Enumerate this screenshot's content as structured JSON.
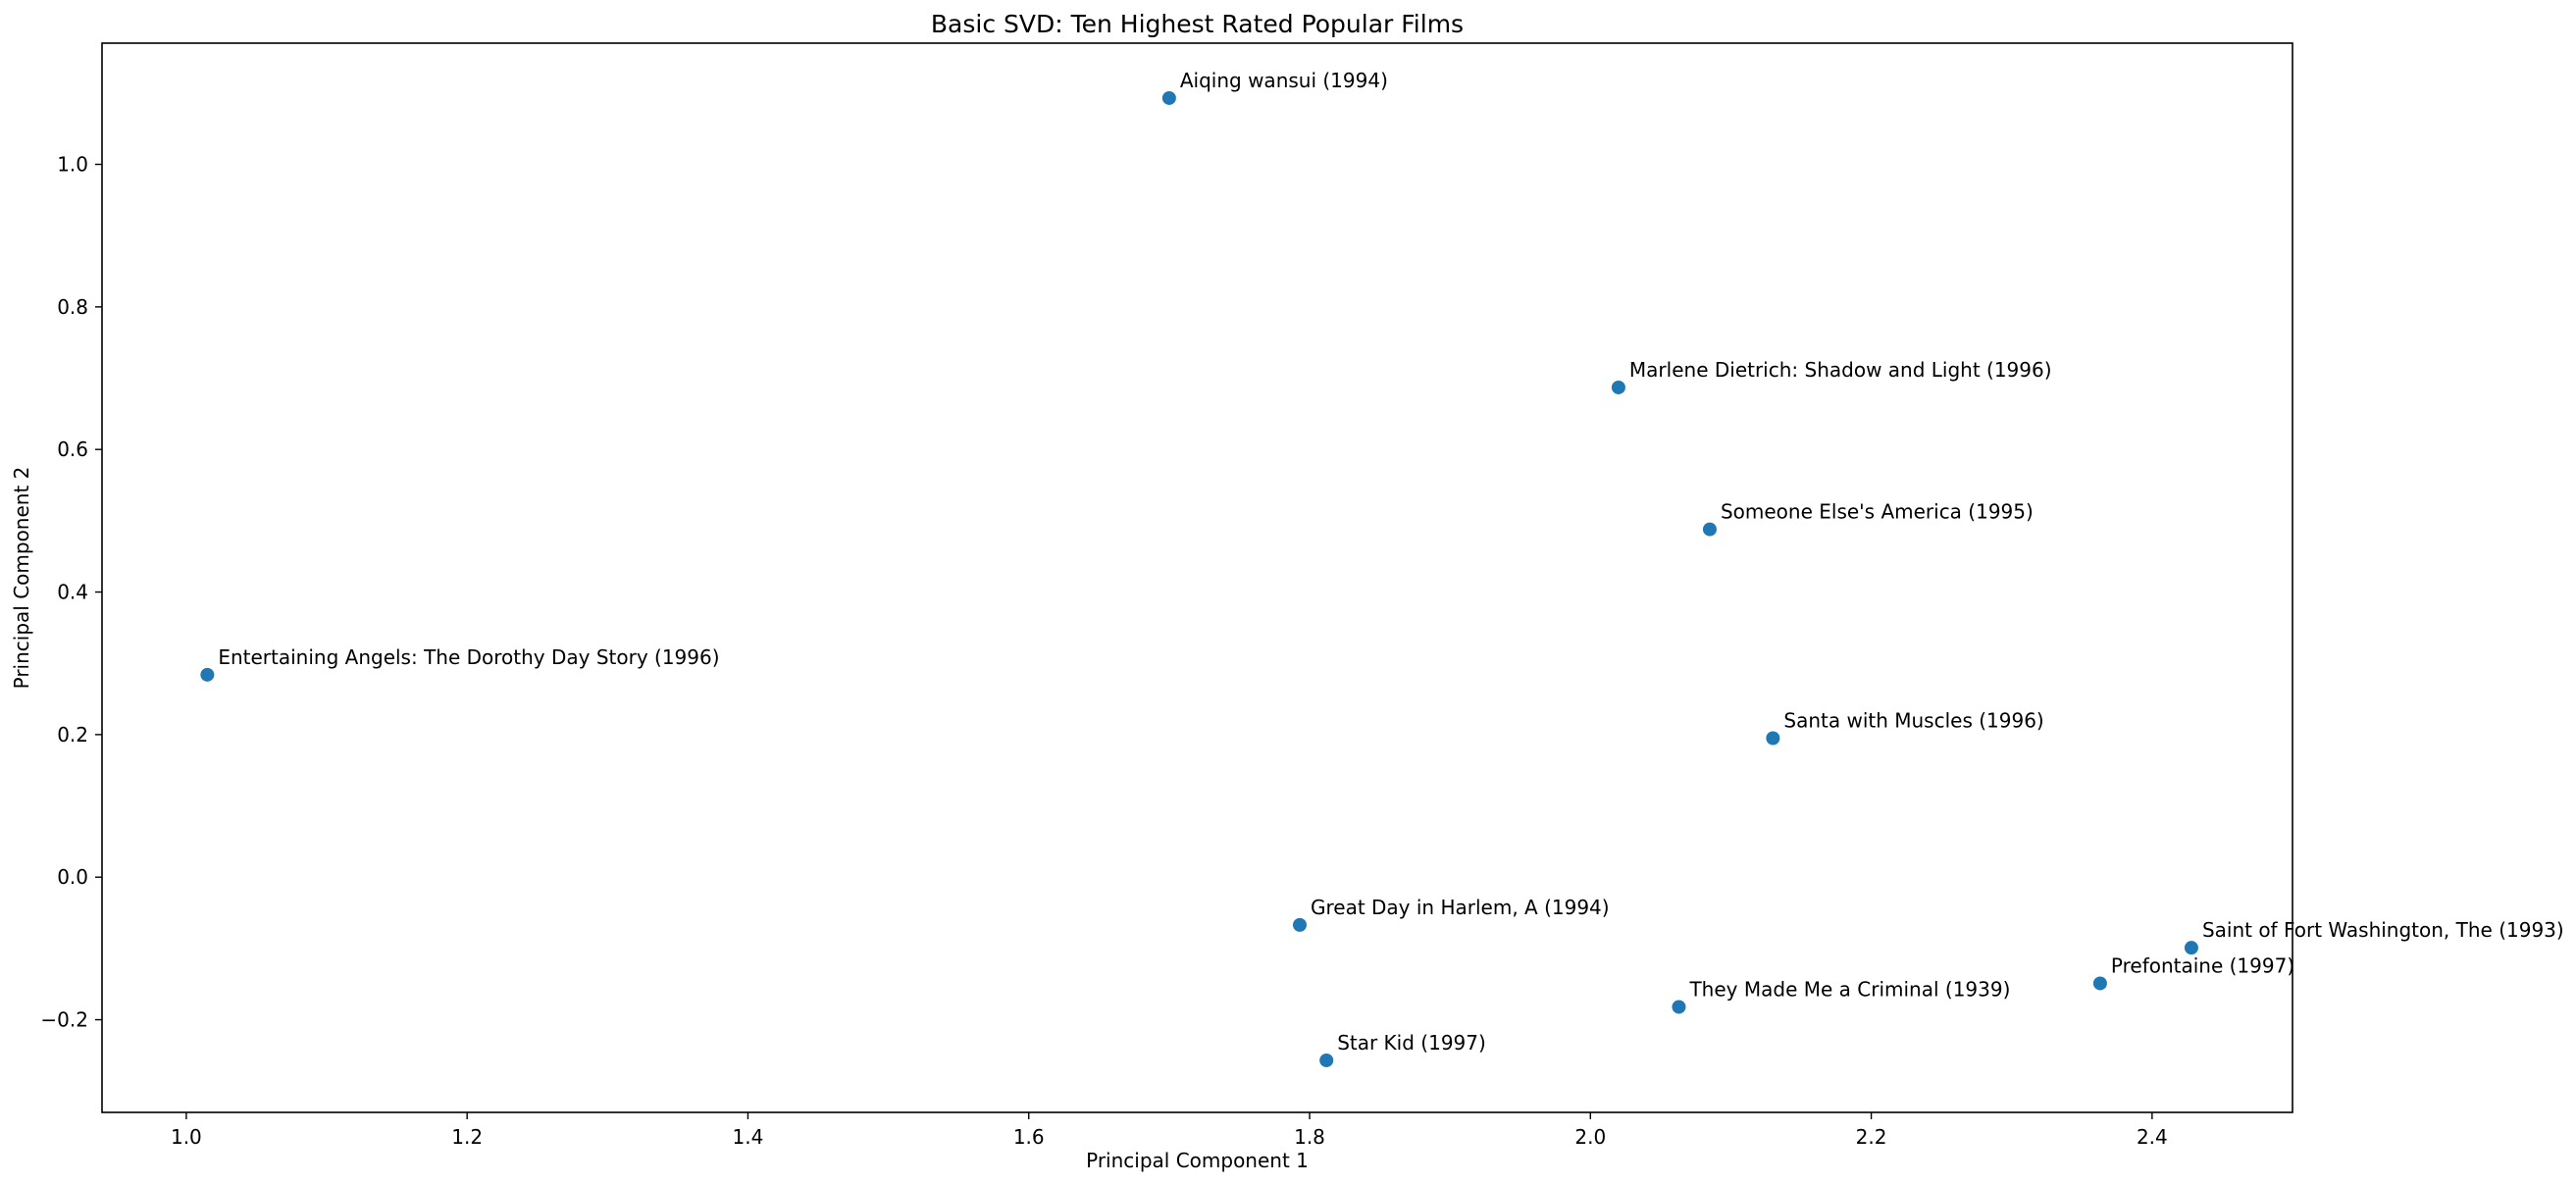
{
  "chart_data": {
    "type": "scatter",
    "title": "Basic SVD: Ten Highest Rated Popular Films",
    "xlabel": "Principal Component 1",
    "ylabel": "Principal Component 2",
    "xlim": [
      0.94,
      2.5
    ],
    "ylim": [
      -0.33,
      1.17
    ],
    "xticks": [
      1.0,
      1.2,
      1.4,
      1.6,
      1.8,
      2.0,
      2.2,
      2.4
    ],
    "xtick_labels": [
      "1.0",
      "1.2",
      "1.4",
      "1.6",
      "1.8",
      "2.0",
      "2.2",
      "2.4"
    ],
    "yticks": [
      -0.2,
      0.0,
      0.2,
      0.4,
      0.6,
      0.8,
      1.0
    ],
    "ytick_labels": [
      "−0.2",
      "0.0",
      "0.2",
      "0.4",
      "0.6",
      "0.8",
      "1.0"
    ],
    "grid": false,
    "marker_color": "#1f77b4",
    "points": [
      {
        "label": "Aiqing wansui (1994)",
        "x": 1.7,
        "y": 1.093
      },
      {
        "label": "Marlene Dietrich: Shadow and Light (1996)",
        "x": 2.02,
        "y": 0.687
      },
      {
        "label": "Someone Else's America (1995)",
        "x": 2.085,
        "y": 0.488
      },
      {
        "label": "Entertaining Angels: The Dorothy Day Story (1996)",
        "x": 1.015,
        "y": 0.284
      },
      {
        "label": "Santa with Muscles (1996)",
        "x": 2.13,
        "y": 0.195
      },
      {
        "label": "Great Day in Harlem, A (1994)",
        "x": 1.793,
        "y": -0.067
      },
      {
        "label": "Saint of Fort Washington, The (1993)",
        "x": 2.428,
        "y": -0.099
      },
      {
        "label": "Prefontaine (1997)",
        "x": 2.363,
        "y": -0.149
      },
      {
        "label": "They Made Me a Criminal (1939)",
        "x": 2.063,
        "y": -0.182
      },
      {
        "label": "Star Kid (1997)",
        "x": 1.812,
        "y": -0.257
      }
    ]
  }
}
